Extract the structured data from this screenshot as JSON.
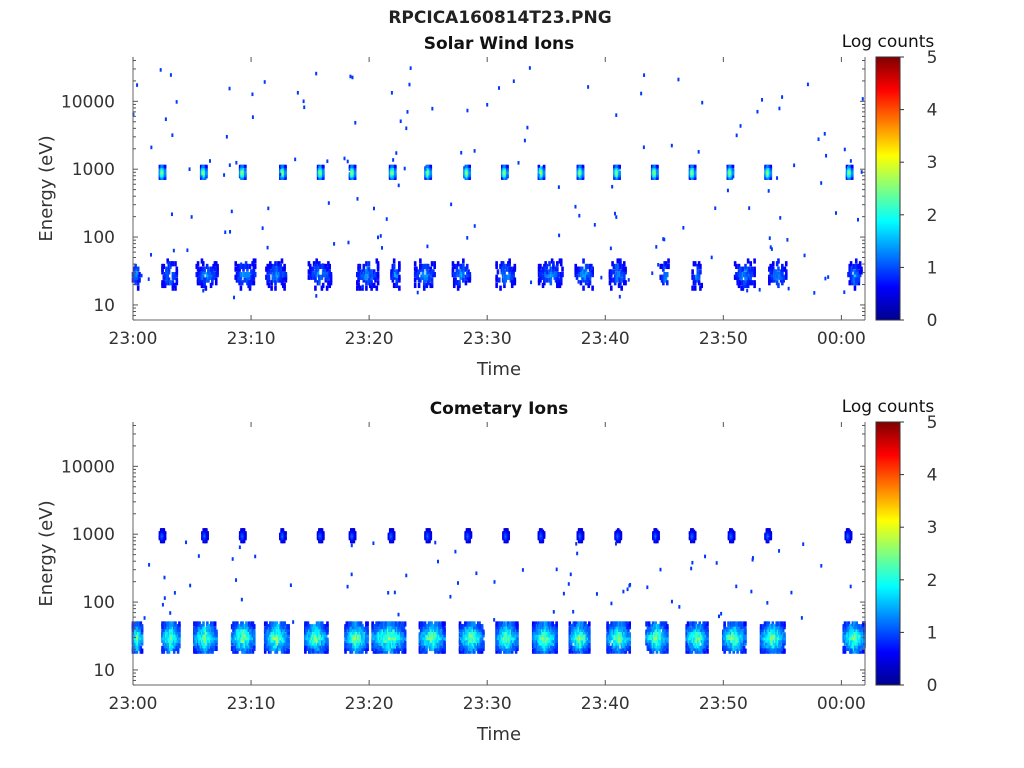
{
  "figure": {
    "title": "RPCICA160814T23.PNG"
  },
  "chart_data": [
    {
      "type": "heatmap",
      "title": "Solar Wind Ions",
      "xlabel": "Time",
      "ylabel": "Energy (eV)",
      "x_ticks": [
        "23:00",
        "23:10",
        "23:20",
        "23:30",
        "23:40",
        "23:50",
        "00:00"
      ],
      "x_range_minutes": [
        0,
        62
      ],
      "y_scale": "log",
      "y_ticks": [
        10,
        100,
        1000,
        10000
      ],
      "y_range": [
        6,
        45000
      ],
      "colorbar": {
        "label": "Log counts",
        "ticks": [
          0,
          1,
          2,
          3,
          4,
          5
        ],
        "range": [
          0,
          5
        ],
        "colormap": "jet"
      },
      "bands": [
        {
          "name": "1000 eV beam",
          "energy_eV": 900,
          "peak_log_counts": 3.0,
          "times_min": [
            2.5,
            6.0,
            9.3,
            12.7,
            15.9,
            18.6,
            22.0,
            25.0,
            28.3,
            31.5,
            34.6,
            37.9,
            41.0,
            44.2,
            47.4,
            50.6,
            53.8,
            60.7
          ]
        },
        {
          "name": "low energy",
          "energy_eV": 28,
          "peak_log_counts": 1.5,
          "segments_min": [
            [
              0,
              0.6
            ],
            [
              2.5,
              3.8
            ],
            [
              5.4,
              7.2
            ],
            [
              8.7,
              10.4
            ],
            [
              11.3,
              13.0
            ],
            [
              14.9,
              16.8
            ],
            [
              19.0,
              20.8
            ],
            [
              21.9,
              22.6
            ],
            [
              23.9,
              25.6
            ],
            [
              27.1,
              28.6
            ],
            [
              30.8,
              32.4
            ],
            [
              34.4,
              36.4
            ],
            [
              37.5,
              39.0
            ],
            [
              40.4,
              41.8
            ],
            [
              44.7,
              45.4
            ],
            [
              47.4,
              48.2
            ],
            [
              51.0,
              52.7
            ],
            [
              53.9,
              55.4
            ],
            [
              60.6,
              61.7
            ]
          ]
        }
      ]
    },
    {
      "type": "heatmap",
      "title": "Cometary Ions",
      "xlabel": "Time",
      "ylabel": "Energy (eV)",
      "x_ticks": [
        "23:00",
        "23:10",
        "23:20",
        "23:30",
        "23:40",
        "23:50",
        "00:00"
      ],
      "x_range_minutes": [
        0,
        62
      ],
      "y_scale": "log",
      "y_ticks": [
        10,
        100,
        1000,
        10000
      ],
      "y_range": [
        6,
        45000
      ],
      "colorbar": {
        "label": "Log counts",
        "ticks": [
          0,
          1,
          2,
          3,
          4,
          5
        ],
        "range": [
          0,
          5
        ],
        "colormap": "jet"
      },
      "bands": [
        {
          "name": "1000 eV",
          "energy_eV": 950,
          "peak_log_counts": 1.2,
          "times_min": [
            2.5,
            6.1,
            9.3,
            12.7,
            15.9,
            18.6,
            21.9,
            25.0,
            28.4,
            31.6,
            34.6,
            37.9,
            41.1,
            44.3,
            47.4,
            50.7,
            53.8,
            60.6
          ]
        },
        {
          "name": "cometary band",
          "energy_eV": 30,
          "peak_log_counts": 2.8,
          "segments_min": [
            [
              0,
              0.8
            ],
            [
              2.5,
              4.0
            ],
            [
              5.2,
              7.1
            ],
            [
              8.4,
              10.3
            ],
            [
              11.2,
              13.2
            ],
            [
              14.6,
              16.5
            ],
            [
              18.0,
              19.9
            ],
            [
              20.3,
              23.1
            ],
            [
              24.3,
              26.4
            ],
            [
              27.7,
              29.7
            ],
            [
              30.8,
              32.6
            ],
            [
              33.9,
              35.9
            ],
            [
              37.0,
              38.7
            ],
            [
              40.2,
              42.1
            ],
            [
              43.5,
              45.3
            ],
            [
              46.9,
              48.7
            ],
            [
              50.0,
              51.9
            ],
            [
              53.2,
              55.2
            ],
            [
              60.2,
              62.0
            ]
          ]
        }
      ]
    }
  ]
}
